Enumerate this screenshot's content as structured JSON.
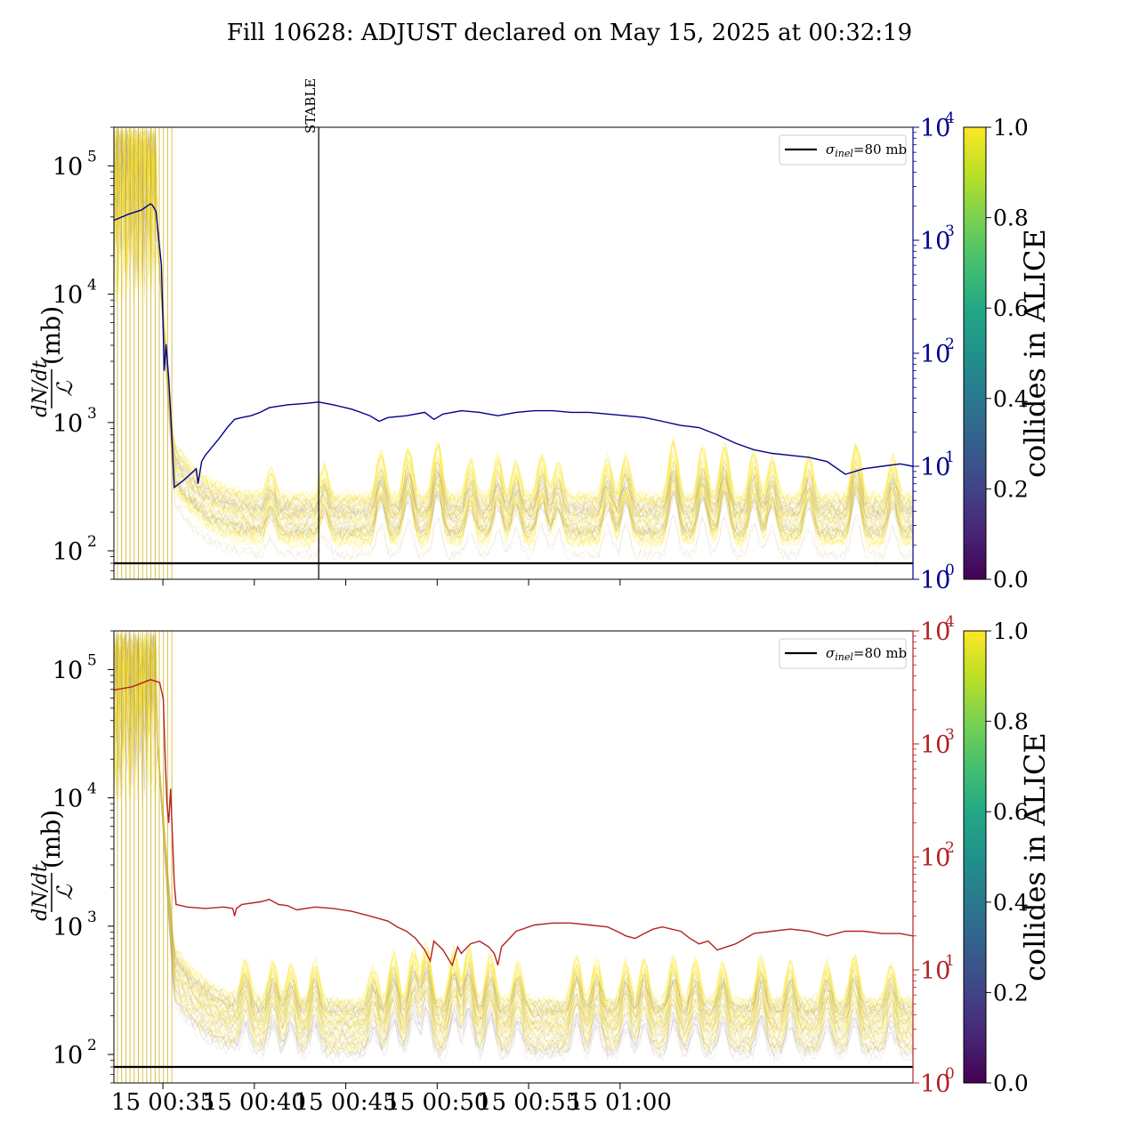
{
  "title": "Fill 10628: ADJUST declared on May 15, 2025 at 00:32:19",
  "colors": {
    "top_secondary": "#00008b",
    "bottom_secondary": "#b22222",
    "reference_line": "#000000",
    "colliding": "#fde725"
  },
  "chart_data": [
    {
      "type": "line",
      "panel": "top",
      "ylabel_num": "dN/dt",
      "ylabel_den": "ℒ",
      "ylabel_unit": "(mb)",
      "yscale": "log",
      "ylim": [
        60,
        200000
      ],
      "yticks": [
        {
          "value": 100,
          "base": "10",
          "exp": "2"
        },
        {
          "value": 1000,
          "base": "10",
          "exp": "3"
        },
        {
          "value": 10000,
          "base": "10",
          "exp": "4"
        },
        {
          "value": 100000,
          "base": "10",
          "exp": "5"
        }
      ],
      "xticks_shown": false,
      "secondary_axis": {
        "scale": "log",
        "ylim": [
          1,
          10000
        ],
        "color": "#00008b",
        "ticks": [
          {
            "value": 1,
            "base": "10",
            "exp": "0"
          },
          {
            "value": 10,
            "base": "10",
            "exp": "1"
          },
          {
            "value": 100,
            "base": "10",
            "exp": "2"
          },
          {
            "value": 1000,
            "base": "10",
            "exp": "3"
          },
          {
            "value": 10000,
            "base": "10",
            "exp": "4"
          }
        ]
      },
      "reference_line": {
        "value": 80,
        "legend_sym": "σ",
        "legend_sub": "inel",
        "legend_val": "=80 mb"
      },
      "annotation": {
        "label": "STABLE",
        "time_min": 11.2
      },
      "secondary_series": [
        [
          0.0,
          1500
        ],
        [
          0.8,
          1700
        ],
        [
          1.5,
          1850
        ],
        [
          2.0,
          2100
        ],
        [
          2.1,
          2050
        ],
        [
          2.3,
          1800
        ],
        [
          2.6,
          600
        ],
        [
          2.7,
          150
        ],
        [
          2.75,
          70
        ],
        [
          2.85,
          120
        ],
        [
          3.0,
          60
        ],
        [
          3.1,
          30
        ],
        [
          3.3,
          6.5
        ],
        [
          3.8,
          7.5
        ],
        [
          4.5,
          9.5
        ],
        [
          4.6,
          7
        ],
        [
          4.8,
          11
        ],
        [
          5.0,
          12.5
        ],
        [
          5.4,
          15
        ],
        [
          5.8,
          18
        ],
        [
          6.2,
          22
        ],
        [
          6.6,
          26
        ],
        [
          7.0,
          27
        ],
        [
          7.5,
          28
        ],
        [
          8.0,
          30
        ],
        [
          8.5,
          33
        ],
        [
          9.5,
          35
        ],
        [
          10.5,
          36
        ],
        [
          11.2,
          37
        ],
        [
          12.0,
          35
        ],
        [
          13.0,
          32
        ],
        [
          13.5,
          30
        ],
        [
          14.0,
          28
        ],
        [
          14.5,
          25
        ],
        [
          15.0,
          27
        ],
        [
          16.0,
          28
        ],
        [
          17.0,
          30
        ],
        [
          17.5,
          26
        ],
        [
          18.0,
          29
        ],
        [
          19.0,
          31
        ],
        [
          20.0,
          30
        ],
        [
          21.0,
          28
        ],
        [
          22.0,
          30
        ],
        [
          23.0,
          31
        ],
        [
          24.0,
          31
        ],
        [
          25.0,
          30
        ],
        [
          26.0,
          30
        ],
        [
          27.0,
          29
        ],
        [
          28.0,
          28
        ],
        [
          29.0,
          27
        ],
        [
          30.0,
          25
        ],
        [
          31.0,
          23
        ],
        [
          32.0,
          22
        ],
        [
          33.0,
          19
        ],
        [
          34.0,
          16
        ],
        [
          35.0,
          14
        ],
        [
          36.0,
          13
        ],
        [
          37.0,
          12.5
        ],
        [
          38.0,
          12
        ],
        [
          39.0,
          11
        ],
        [
          40.0,
          8.5
        ],
        [
          41.0,
          9.5
        ],
        [
          42.0,
          10
        ],
        [
          43.0,
          10.5
        ],
        [
          43.7,
          10
        ]
      ]
    },
    {
      "type": "line",
      "panel": "bottom",
      "ylabel_num": "dN/dt",
      "ylabel_den": "ℒ",
      "ylabel_unit": "(mb)",
      "yscale": "log",
      "ylim": [
        60,
        200000
      ],
      "yticks": [
        {
          "value": 100,
          "base": "10",
          "exp": "2"
        },
        {
          "value": 1000,
          "base": "10",
          "exp": "3"
        },
        {
          "value": 10000,
          "base": "10",
          "exp": "4"
        },
        {
          "value": 100000,
          "base": "10",
          "exp": "5"
        }
      ],
      "xticks": [
        {
          "time_min": 2.68,
          "label": "15 00:35"
        },
        {
          "time_min": 7.68,
          "label": "15 00:40"
        },
        {
          "time_min": 12.68,
          "label": "15 00:45"
        },
        {
          "time_min": 17.68,
          "label": "15 00:50"
        },
        {
          "time_min": 22.68,
          "label": "15 00:55"
        },
        {
          "time_min": 27.68,
          "label": "15 01:00"
        }
      ],
      "secondary_axis": {
        "scale": "log",
        "ylim": [
          1,
          10000
        ],
        "color": "#b22222",
        "ticks": [
          {
            "value": 1,
            "base": "10",
            "exp": "0"
          },
          {
            "value": 10,
            "base": "10",
            "exp": "1"
          },
          {
            "value": 100,
            "base": "10",
            "exp": "2"
          },
          {
            "value": 1000,
            "base": "10",
            "exp": "3"
          },
          {
            "value": 10000,
            "base": "10",
            "exp": "4"
          }
        ]
      },
      "reference_line": {
        "value": 80,
        "legend_sym": "σ",
        "legend_sub": "inel",
        "legend_val": "=80 mb"
      },
      "secondary_series": [
        [
          0.0,
          3000
        ],
        [
          1.0,
          3200
        ],
        [
          2.0,
          3700
        ],
        [
          2.5,
          3500
        ],
        [
          2.7,
          2500
        ],
        [
          2.8,
          800
        ],
        [
          2.9,
          300
        ],
        [
          3.0,
          200
        ],
        [
          3.1,
          400
        ],
        [
          3.2,
          150
        ],
        [
          3.3,
          60
        ],
        [
          3.4,
          38
        ],
        [
          4.0,
          36
        ],
        [
          5.0,
          35
        ],
        [
          6.0,
          36
        ],
        [
          6.5,
          35
        ],
        [
          6.6,
          30
        ],
        [
          6.7,
          35
        ],
        [
          7.0,
          38
        ],
        [
          8.0,
          40
        ],
        [
          8.5,
          42
        ],
        [
          9.0,
          38
        ],
        [
          9.5,
          37
        ],
        [
          10.0,
          34
        ],
        [
          11.0,
          36
        ],
        [
          12.0,
          35
        ],
        [
          13.0,
          33
        ],
        [
          14.0,
          30
        ],
        [
          15.0,
          27
        ],
        [
          15.5,
          24
        ],
        [
          16.0,
          22
        ],
        [
          16.5,
          19
        ],
        [
          17.0,
          15
        ],
        [
          17.3,
          12
        ],
        [
          17.5,
          18
        ],
        [
          18.0,
          15
        ],
        [
          18.5,
          11
        ],
        [
          18.8,
          16
        ],
        [
          19.0,
          14
        ],
        [
          19.5,
          17
        ],
        [
          20.0,
          18
        ],
        [
          20.5,
          16
        ],
        [
          20.8,
          14
        ],
        [
          21.0,
          11
        ],
        [
          21.2,
          16
        ],
        [
          22.0,
          22
        ],
        [
          23.0,
          25
        ],
        [
          24.0,
          26
        ],
        [
          25.0,
          26
        ],
        [
          26.0,
          25
        ],
        [
          27.0,
          24
        ],
        [
          27.5,
          22
        ],
        [
          28.0,
          20
        ],
        [
          28.5,
          19
        ],
        [
          29.0,
          21
        ],
        [
          29.5,
          23
        ],
        [
          30.0,
          24
        ],
        [
          31.0,
          22
        ],
        [
          31.5,
          19
        ],
        [
          32.0,
          17
        ],
        [
          32.5,
          18
        ],
        [
          33.0,
          15
        ],
        [
          34.0,
          17
        ],
        [
          35.0,
          21
        ],
        [
          36.0,
          22
        ],
        [
          37.0,
          23
        ],
        [
          38.0,
          22
        ],
        [
          39.0,
          20
        ],
        [
          40.0,
          22
        ],
        [
          41.0,
          22
        ],
        [
          42.0,
          21
        ],
        [
          43.0,
          21
        ],
        [
          43.7,
          20
        ]
      ]
    }
  ],
  "colorbars": [
    {
      "label": "collides in ALICE",
      "ticks": [
        "0.0",
        "0.2",
        "0.4",
        "0.6",
        "0.8",
        "1.0"
      ]
    },
    {
      "label": "collides in ALICE",
      "ticks": [
        "0.0",
        "0.2",
        "0.4",
        "0.6",
        "0.8",
        "1.0"
      ]
    }
  ]
}
